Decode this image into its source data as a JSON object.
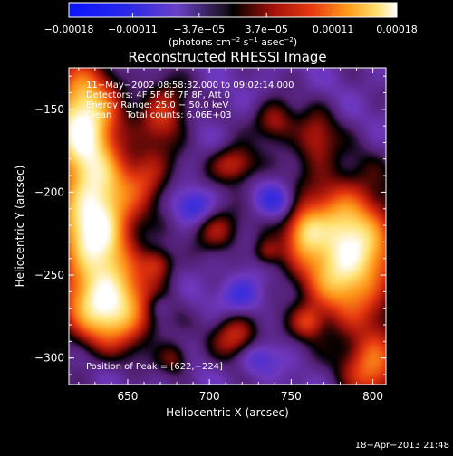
{
  "chart_data": {
    "type": "heatmap",
    "title": "Reconstructed RHESSI Image",
    "xlabel": "Heliocentric X (arcsec)",
    "ylabel": "Heliocentric Y (arcsec)",
    "xlim": [
      614,
      808
    ],
    "ylim": [
      -316,
      -125
    ],
    "x_ticks": [
      650,
      700,
      750,
      800
    ],
    "y_ticks": [
      -150,
      -200,
      -250,
      -300
    ],
    "x_tick_labels": [
      "650",
      "700",
      "750",
      "800"
    ],
    "y_tick_labels": [
      "−150",
      "−200",
      "−250",
      "−300"
    ],
    "colorbar": {
      "range": [
        -0.00018,
        0.00018
      ],
      "tick_values": [
        -0.00018,
        -0.00011,
        -3.7e-05,
        3.7e-05,
        0.00011,
        0.00018
      ],
      "tick_labels": [
        "−0.00018",
        "−0.00011",
        "−3.7e−05",
        "3.7e−05",
        "0.00011",
        "0.00018"
      ],
      "unit_base": "(photons cm",
      "unit_exp1": "−2",
      "unit_mid": " s",
      "unit_exp2": "−1",
      "unit_end": " asec",
      "unit_exp3": "−2",
      "unit_close": ")"
    },
    "annotations": {
      "line1": "11−May−2002 08:58:32.000 to 09:02:14.000",
      "line2": "Detectors: 4F 5F 6F 7F 8F, Att 0",
      "line3": "Energy Range: 25.0 − 50.0 keV",
      "line4": "Clean     Total counts: 6.06E+03",
      "peak": "Position of Peak = [622,−224]"
    },
    "peak_position": [
      622,
      -224
    ],
    "features": [
      {
        "x": 622,
        "y": -155,
        "sx": 14,
        "sy": 22,
        "a": 1.2
      },
      {
        "x": 630,
        "y": -218,
        "sx": 16,
        "sy": 30,
        "a": 1.35
      },
      {
        "x": 640,
        "y": -270,
        "sx": 18,
        "sy": 16,
        "a": 1.05
      },
      {
        "x": 672,
        "y": -152,
        "sx": 10,
        "sy": 14,
        "a": 0.55
      },
      {
        "x": 662,
        "y": -190,
        "sx": 10,
        "sy": 12,
        "a": 0.45
      },
      {
        "x": 668,
        "y": -243,
        "sx": 7,
        "sy": 7,
        "a": 0.45
      },
      {
        "x": 715,
        "y": -183,
        "sx": 10,
        "sy": 8,
        "a": 0.55
      },
      {
        "x": 740,
        "y": -157,
        "sx": 9,
        "sy": 9,
        "a": 0.45
      },
      {
        "x": 705,
        "y": -223,
        "sx": 10,
        "sy": 9,
        "a": 0.45
      },
      {
        "x": 716,
        "y": -287,
        "sx": 10,
        "sy": 10,
        "a": 0.55
      },
      {
        "x": 760,
        "y": -278,
        "sx": 7,
        "sy": 7,
        "a": 0.4
      },
      {
        "x": 765,
        "y": -168,
        "sx": 9,
        "sy": 12,
        "a": 0.45
      },
      {
        "x": 784,
        "y": -236,
        "sx": 20,
        "sy": 28,
        "a": 1.3
      },
      {
        "x": 758,
        "y": -223,
        "sx": 8,
        "sy": 10,
        "a": 0.6
      },
      {
        "x": 800,
        "y": -305,
        "sx": 12,
        "sy": 14,
        "a": 0.75
      },
      {
        "x": 678,
        "y": -300,
        "sx": 7,
        "sy": 7,
        "a": 0.35
      },
      {
        "x": 735,
        "y": -236,
        "sx": 6,
        "sy": 6,
        "a": 0.35
      },
      {
        "x": 690,
        "y": -208,
        "sx": 8,
        "sy": 7,
        "a": -0.35
      },
      {
        "x": 720,
        "y": -262,
        "sx": 9,
        "sy": 8,
        "a": -0.35
      },
      {
        "x": 740,
        "y": -205,
        "sx": 8,
        "sy": 7,
        "a": -0.35
      },
      {
        "x": 728,
        "y": -300,
        "sx": 9,
        "sy": 7,
        "a": -0.3
      },
      {
        "x": 668,
        "y": -268,
        "sx": 6,
        "sy": 6,
        "a": -0.25
      }
    ]
  },
  "footer": {
    "timestamp": "18−Apr−2013 21:48"
  }
}
